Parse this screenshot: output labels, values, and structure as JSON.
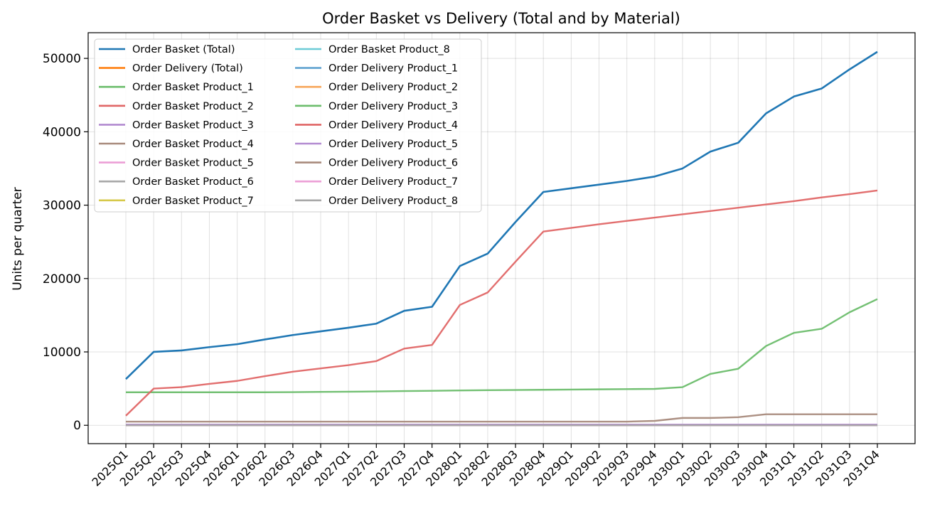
{
  "chart_data": {
    "type": "line",
    "title": "Order Basket vs Delivery (Total and by Material)",
    "xlabel": "",
    "ylabel": "Units per quarter",
    "categories": [
      "2025Q1",
      "2025Q2",
      "2025Q3",
      "2025Q4",
      "2026Q1",
      "2026Q2",
      "2026Q3",
      "2026Q4",
      "2027Q1",
      "2027Q2",
      "2027Q3",
      "2027Q4",
      "2028Q1",
      "2028Q2",
      "2028Q3",
      "2028Q4",
      "2029Q1",
      "2029Q2",
      "2029Q3",
      "2029Q4",
      "2030Q1",
      "2030Q2",
      "2030Q3",
      "2030Q4",
      "2031Q1",
      "2031Q2",
      "2031Q3",
      "2031Q4"
    ],
    "ylim": [
      -2500,
      53500
    ],
    "yticks": [
      0,
      10000,
      20000,
      30000,
      40000,
      50000
    ],
    "grid": true,
    "legend_position": "top-left",
    "legend_columns": 2,
    "series": [
      {
        "name": "Order Basket (Total)",
        "color": "#1f77b4",
        "values": [
          6300,
          10000,
          10200,
          10650,
          11050,
          11700,
          12300,
          12800,
          13300,
          13850,
          15600,
          16150,
          21700,
          23400,
          27700,
          31800,
          32300,
          32800,
          33300,
          33900,
          35000,
          37300,
          38500,
          42500,
          44800,
          45900,
          48500,
          50900
        ]
      },
      {
        "name": "Order Delivery (Total)",
        "color": "#ff7f0e",
        "values": [
          0,
          0,
          0,
          0,
          0,
          0,
          0,
          0,
          0,
          0,
          0,
          0,
          0,
          0,
          0,
          0,
          0,
          0,
          0,
          0,
          0,
          0,
          0,
          0,
          0,
          0,
          0,
          0
        ]
      },
      {
        "name": "Order Basket Product_1",
        "color": "#6cbd6c",
        "values": [
          4500,
          4500,
          4500,
          4500,
          4500,
          4500,
          4520,
          4550,
          4580,
          4610,
          4660,
          4700,
          4750,
          4780,
          4810,
          4840,
          4870,
          4900,
          4930,
          4960,
          5200,
          7000,
          7700,
          10800,
          12600,
          13150,
          15400,
          17200
        ]
      },
      {
        "name": "Order Basket Product_2",
        "color": "#e06666",
        "values": [
          1300,
          5000,
          5200,
          5650,
          6050,
          6700,
          7300,
          7750,
          8200,
          8750,
          10450,
          10950,
          16400,
          18100,
          22300,
          26400,
          26900,
          27400,
          27850,
          28300,
          28750,
          29200,
          29650,
          30100,
          30550,
          31050,
          31500,
          32000
        ]
      },
      {
        "name": "Order Basket Product_3",
        "color": "#b38bd1",
        "values": [
          100,
          100,
          100,
          100,
          100,
          100,
          100,
          100,
          100,
          100,
          100,
          100,
          100,
          100,
          100,
          100,
          100,
          100,
          100,
          100,
          100,
          100,
          100,
          100,
          100,
          100,
          100,
          100
        ]
      },
      {
        "name": "Order Basket Product_4",
        "color": "#a88a7c",
        "values": [
          500,
          500,
          500,
          500,
          500,
          500,
          500,
          500,
          500,
          500,
          500,
          500,
          500,
          500,
          500,
          500,
          500,
          500,
          500,
          600,
          1000,
          1000,
          1100,
          1500,
          1500,
          1500,
          1500,
          1500
        ]
      },
      {
        "name": "Order Basket Product_5",
        "color": "#ec9fd6",
        "values": [
          0,
          0,
          0,
          0,
          0,
          0,
          0,
          0,
          0,
          0,
          0,
          0,
          0,
          0,
          0,
          0,
          0,
          0,
          0,
          0,
          0,
          0,
          0,
          0,
          0,
          0,
          0,
          0
        ]
      },
      {
        "name": "Order Basket Product_6",
        "color": "#a8a8a8",
        "values": [
          0,
          0,
          0,
          0,
          0,
          0,
          0,
          0,
          0,
          0,
          0,
          0,
          0,
          0,
          0,
          0,
          0,
          0,
          0,
          0,
          0,
          0,
          0,
          0,
          0,
          0,
          0,
          0
        ]
      },
      {
        "name": "Order Basket Product_7",
        "color": "#d6c94a",
        "values": [
          0,
          0,
          0,
          0,
          0,
          0,
          0,
          0,
          0,
          0,
          0,
          0,
          0,
          0,
          0,
          0,
          0,
          0,
          0,
          0,
          0,
          0,
          0,
          0,
          0,
          0,
          0,
          0
        ]
      },
      {
        "name": "Order Basket Product_8",
        "color": "#6ccbd6",
        "values": [
          0,
          0,
          0,
          0,
          0,
          0,
          0,
          0,
          0,
          0,
          0,
          0,
          0,
          0,
          0,
          0,
          0,
          0,
          0,
          0,
          0,
          0,
          0,
          0,
          0,
          0,
          0,
          0
        ]
      },
      {
        "name": "Order Delivery Product_1",
        "color": "#5fa2d0",
        "values": [
          0,
          0,
          0,
          0,
          0,
          0,
          0,
          0,
          0,
          0,
          0,
          0,
          0,
          0,
          0,
          0,
          0,
          0,
          0,
          0,
          0,
          0,
          0,
          0,
          0,
          0,
          0,
          0
        ]
      },
      {
        "name": "Order Delivery Product_2",
        "color": "#f7a65a",
        "values": [
          0,
          0,
          0,
          0,
          0,
          0,
          0,
          0,
          0,
          0,
          0,
          0,
          0,
          0,
          0,
          0,
          0,
          0,
          0,
          0,
          0,
          0,
          0,
          0,
          0,
          0,
          0,
          0
        ]
      },
      {
        "name": "Order Delivery Product_3",
        "color": "#6cbd6c",
        "values": [
          0,
          0,
          0,
          0,
          0,
          0,
          0,
          0,
          0,
          0,
          0,
          0,
          0,
          0,
          0,
          0,
          0,
          0,
          0,
          0,
          0,
          0,
          0,
          0,
          0,
          0,
          0,
          0
        ]
      },
      {
        "name": "Order Delivery Product_4",
        "color": "#e06666",
        "values": [
          0,
          0,
          0,
          0,
          0,
          0,
          0,
          0,
          0,
          0,
          0,
          0,
          0,
          0,
          0,
          0,
          0,
          0,
          0,
          0,
          0,
          0,
          0,
          0,
          0,
          0,
          0,
          0
        ]
      },
      {
        "name": "Order Delivery Product_5",
        "color": "#b38bd1",
        "values": [
          0,
          0,
          0,
          0,
          0,
          0,
          0,
          0,
          0,
          0,
          0,
          0,
          0,
          0,
          0,
          0,
          0,
          0,
          0,
          0,
          0,
          0,
          0,
          0,
          0,
          0,
          0,
          0
        ]
      },
      {
        "name": "Order Delivery Product_6",
        "color": "#a88a7c",
        "values": [
          0,
          0,
          0,
          0,
          0,
          0,
          0,
          0,
          0,
          0,
          0,
          0,
          0,
          0,
          0,
          0,
          0,
          0,
          0,
          0,
          0,
          0,
          0,
          0,
          0,
          0,
          0,
          0
        ]
      },
      {
        "name": "Order Delivery Product_7",
        "color": "#ec9fd6",
        "values": [
          0,
          0,
          0,
          0,
          0,
          0,
          0,
          0,
          0,
          0,
          0,
          0,
          0,
          0,
          0,
          0,
          0,
          0,
          0,
          0,
          0,
          0,
          0,
          0,
          0,
          0,
          0,
          0
        ]
      },
      {
        "name": "Order Delivery Product_8",
        "color": "#a8a8a8",
        "values": [
          0,
          0,
          0,
          0,
          0,
          0,
          0,
          0,
          0,
          0,
          0,
          0,
          0,
          0,
          0,
          0,
          0,
          0,
          0,
          0,
          0,
          0,
          0,
          0,
          0,
          0,
          0,
          0
        ]
      }
    ]
  }
}
